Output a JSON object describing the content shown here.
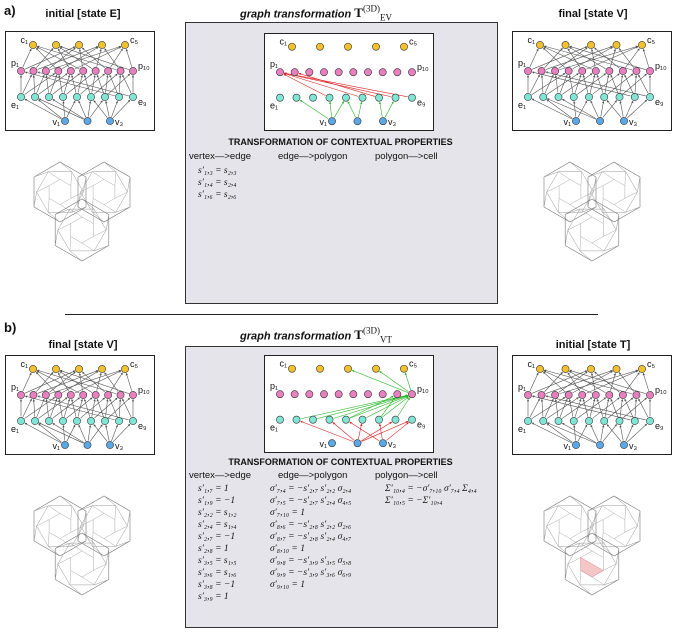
{
  "panel_a": {
    "label": "a)",
    "left_title": "initial [state E]",
    "center_title_prefix": "graph transformation",
    "center_symbol": "T",
    "center_sup": "(3D)",
    "center_sub": "EV",
    "right_title": "final [state V]",
    "section_heading": "TRANSFORMATION OF CONTEXTUAL PROPERTIES",
    "col_vertex": "vertex—>edge",
    "col_edge": "edge—>polygon",
    "col_polygon": "polygon—>cell",
    "vertex_equations": [
      "s′₁,₃ = s₂,₃",
      "s′₁,₄ = s₂,₄",
      "s′₁,₆ = s₂,₆"
    ],
    "edge_equations": [],
    "polygon_equations": []
  },
  "panel_b": {
    "label": "b)",
    "left_title": "final [state V]",
    "center_title_prefix": "graph transformation",
    "center_symbol": "T",
    "center_sup": "(3D)",
    "center_sub": "VT",
    "right_title": "initial [state T]",
    "section_heading": "TRANSFORMATION OF CONTEXTUAL PROPERTIES",
    "col_vertex": "vertex—>edge",
    "col_edge": "edge—>polygon",
    "col_polygon": "polygon—>cell",
    "vertex_equations": [
      "s′₁,₇ = 1",
      "s′₁,₉ = −1",
      "s′₂,₂ = s₁,₂",
      "s′₂,₄ = s₁,₄",
      "s′₂,₇ = −1",
      "s′₂,₈ = 1",
      "s′₃,₅ = s₁,₅",
      "s′₃,₆ = s₁,₆",
      "s′₃,₈ = −1",
      "s′₃,₉ = 1"
    ],
    "edge_equations": [
      "σ′₇,₄ = −s′₂,₇ s′₂,₂ σ₂,₄",
      "σ′₇,₅ = −s′₂,₇ s′₂,₄ σ₄,₅",
      "σ′₇,₁₀ = 1",
      "σ′₈,₆ = −s′₂,₈ s′₂,₂ σ₂,₆",
      "σ′₈,₇ = −s′₂,₈ s′₂,₄ σ₄,₇",
      "σ′₈,₁₀ = 1",
      "σ′₉,₈ = −s′₃,₉ s′₃,₅ σ₅,₈",
      "σ′₉,₉ = −s′₃,₉ s′₃,₆ σ₆,₉",
      "σ′₉,₁₀ = 1"
    ],
    "polygon_equations": [
      "Σ′₁₀,₄ = −σ′₇,₁₀ σ′₇,₄ Σ₄,₄",
      "Σ′₁₀,₅ = −Σ′₁₀,₄"
    ]
  },
  "graph_labels": {
    "c_first": "c₁",
    "c_last": "c₅",
    "p_first": "p₁",
    "p_last": "p₁₀",
    "e_first": "e₁",
    "e_last": "e₉",
    "v_first": "v₁",
    "v_last": "v₃"
  },
  "colors": {
    "cell": "#f2c12e",
    "polygon": "#e87fbf",
    "edge": "#7fe6d6",
    "vertex": "#5aa8e6",
    "added": "#2bb52b",
    "removed": "#e02020",
    "panel_bg": "#e5e4ea"
  }
}
